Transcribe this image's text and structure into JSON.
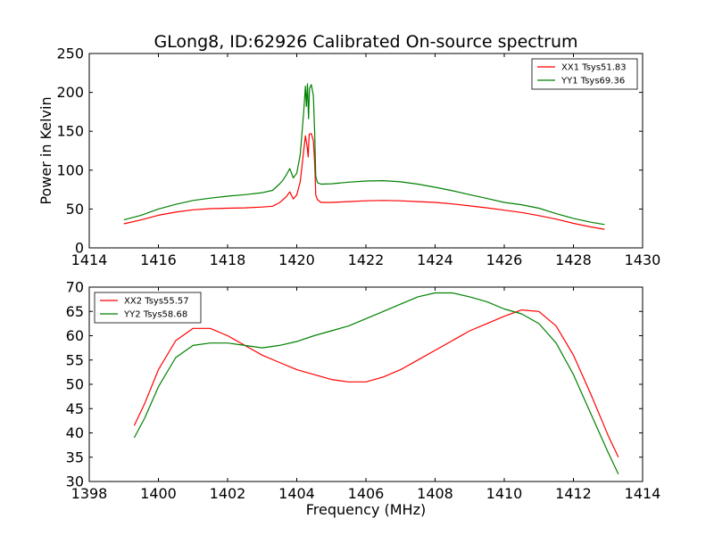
{
  "title": "GLong8, ID:62926 Calibrated On-source spectrum",
  "chart_data": [
    {
      "type": "line",
      "ylabel": "Power in Kelvin",
      "xlabel": "",
      "xlim": [
        1414,
        1430
      ],
      "ylim": [
        0,
        250
      ],
      "xticks": [
        1414,
        1416,
        1418,
        1420,
        1422,
        1424,
        1426,
        1428,
        1430
      ],
      "yticks": [
        0,
        50,
        100,
        150,
        200,
        250
      ],
      "legend": "top-right",
      "grid": false,
      "series": [
        {
          "name": "XX1 Tsys51.83",
          "color": "#ff0000",
          "points": [
            [
              1415.0,
              31
            ],
            [
              1415.5,
              36
            ],
            [
              1416.0,
              42
            ],
            [
              1416.5,
              46
            ],
            [
              1417.0,
              49
            ],
            [
              1417.5,
              50.5
            ],
            [
              1418.0,
              51
            ],
            [
              1418.5,
              51.5
            ],
            [
              1419.0,
              52.5
            ],
            [
              1419.3,
              53.5
            ],
            [
              1419.5,
              58
            ],
            [
              1419.6,
              62
            ],
            [
              1419.7,
              66
            ],
            [
              1419.8,
              72
            ],
            [
              1419.9,
              63
            ],
            [
              1420.0,
              68
            ],
            [
              1420.1,
              85
            ],
            [
              1420.2,
              125
            ],
            [
              1420.25,
              144
            ],
            [
              1420.3,
              131
            ],
            [
              1420.33,
              117
            ],
            [
              1420.36,
              146
            ],
            [
              1420.42,
              147
            ],
            [
              1420.48,
              138
            ],
            [
              1420.52,
              108
            ],
            [
              1420.55,
              68
            ],
            [
              1420.6,
              62
            ],
            [
              1420.7,
              58.5
            ],
            [
              1421.0,
              58.5
            ],
            [
              1421.5,
              59.5
            ],
            [
              1422.0,
              60.5
            ],
            [
              1422.5,
              61
            ],
            [
              1423.0,
              60.5
            ],
            [
              1423.5,
              59.5
            ],
            [
              1424.0,
              58.5
            ],
            [
              1424.5,
              56.5
            ],
            [
              1425.0,
              54
            ],
            [
              1425.5,
              51.5
            ],
            [
              1426.0,
              48.5
            ],
            [
              1426.5,
              45.5
            ],
            [
              1427.0,
              41.5
            ],
            [
              1427.5,
              37
            ],
            [
              1428.0,
              31.5
            ],
            [
              1428.5,
              27
            ],
            [
              1428.9,
              24
            ]
          ]
        },
        {
          "name": "YY1 Tsys69.36",
          "color": "#008000",
          "points": [
            [
              1415.0,
              36
            ],
            [
              1415.5,
              42
            ],
            [
              1416.0,
              50
            ],
            [
              1416.5,
              56
            ],
            [
              1417.0,
              61
            ],
            [
              1417.5,
              64
            ],
            [
              1418.0,
              66.5
            ],
            [
              1418.5,
              68.5
            ],
            [
              1419.0,
              71
            ],
            [
              1419.3,
              74
            ],
            [
              1419.5,
              82
            ],
            [
              1419.6,
              87
            ],
            [
              1419.7,
              94
            ],
            [
              1419.8,
              102
            ],
            [
              1419.9,
              90
            ],
            [
              1420.0,
              96
            ],
            [
              1420.1,
              120
            ],
            [
              1420.2,
              175
            ],
            [
              1420.25,
              208
            ],
            [
              1420.28,
              182
            ],
            [
              1420.31,
              211
            ],
            [
              1420.34,
              166
            ],
            [
              1420.37,
              205
            ],
            [
              1420.42,
              210
            ],
            [
              1420.48,
              196
            ],
            [
              1420.52,
              148
            ],
            [
              1420.55,
              92
            ],
            [
              1420.6,
              84
            ],
            [
              1420.7,
              82
            ],
            [
              1421.0,
              82.5
            ],
            [
              1421.5,
              84.5
            ],
            [
              1422.0,
              86
            ],
            [
              1422.5,
              86.5
            ],
            [
              1423.0,
              85
            ],
            [
              1423.5,
              82
            ],
            [
              1424.0,
              78
            ],
            [
              1424.5,
              73.5
            ],
            [
              1425.0,
              68.5
            ],
            [
              1425.5,
              63.5
            ],
            [
              1426.0,
              58.5
            ],
            [
              1426.5,
              55.5
            ],
            [
              1427.0,
              51
            ],
            [
              1427.5,
              44
            ],
            [
              1428.0,
              38
            ],
            [
              1428.5,
              33
            ],
            [
              1428.9,
              30
            ]
          ]
        }
      ]
    },
    {
      "type": "line",
      "ylabel": "",
      "xlabel": "Frequency (MHz)",
      "xlim": [
        1398,
        1414
      ],
      "ylim": [
        30,
        70
      ],
      "xticks": [
        1398,
        1400,
        1402,
        1404,
        1406,
        1408,
        1410,
        1412,
        1414
      ],
      "yticks": [
        30,
        35,
        40,
        45,
        50,
        55,
        60,
        65,
        70
      ],
      "legend": "top-left",
      "grid": false,
      "series": [
        {
          "name": "XX2 Tsys55.57",
          "color": "#ff0000",
          "points": [
            [
              1399.3,
              41.5
            ],
            [
              1399.6,
              46
            ],
            [
              1400.0,
              53
            ],
            [
              1400.5,
              59
            ],
            [
              1401.0,
              61.5
            ],
            [
              1401.5,
              61.5
            ],
            [
              1402.0,
              60
            ],
            [
              1402.5,
              58
            ],
            [
              1403.0,
              56
            ],
            [
              1403.5,
              54.5
            ],
            [
              1404.0,
              53
            ],
            [
              1404.5,
              52
            ],
            [
              1405.0,
              51
            ],
            [
              1405.5,
              50.5
            ],
            [
              1406.0,
              50.5
            ],
            [
              1406.5,
              51.5
            ],
            [
              1407.0,
              53
            ],
            [
              1407.5,
              55
            ],
            [
              1408.0,
              57
            ],
            [
              1408.5,
              59
            ],
            [
              1409.0,
              61
            ],
            [
              1409.5,
              62.5
            ],
            [
              1410.0,
              64
            ],
            [
              1410.5,
              65.3
            ],
            [
              1411.0,
              65
            ],
            [
              1411.5,
              62
            ],
            [
              1412.0,
              56
            ],
            [
              1412.5,
              48
            ],
            [
              1413.0,
              39.5
            ],
            [
              1413.3,
              35
            ]
          ]
        },
        {
          "name": "YY2 Tsys58.68",
          "color": "#008000",
          "points": [
            [
              1399.3,
              39
            ],
            [
              1399.6,
              43
            ],
            [
              1400.0,
              49.5
            ],
            [
              1400.5,
              55.5
            ],
            [
              1401.0,
              58
            ],
            [
              1401.5,
              58.5
            ],
            [
              1402.0,
              58.5
            ],
            [
              1402.5,
              58
            ],
            [
              1403.0,
              57.5
            ],
            [
              1403.5,
              58
            ],
            [
              1404.0,
              58.8
            ],
            [
              1404.5,
              60
            ],
            [
              1405.0,
              61
            ],
            [
              1405.5,
              62
            ],
            [
              1406.0,
              63.5
            ],
            [
              1406.5,
              65
            ],
            [
              1407.0,
              66.5
            ],
            [
              1407.5,
              68
            ],
            [
              1408.0,
              68.8
            ],
            [
              1408.5,
              68.8
            ],
            [
              1409.0,
              68
            ],
            [
              1409.5,
              67
            ],
            [
              1410.0,
              65.5
            ],
            [
              1410.5,
              64.5
            ],
            [
              1411.0,
              62.5
            ],
            [
              1411.5,
              58.5
            ],
            [
              1412.0,
              52
            ],
            [
              1412.5,
              44
            ],
            [
              1413.0,
              36
            ],
            [
              1413.3,
              31.5
            ]
          ]
        }
      ]
    }
  ]
}
